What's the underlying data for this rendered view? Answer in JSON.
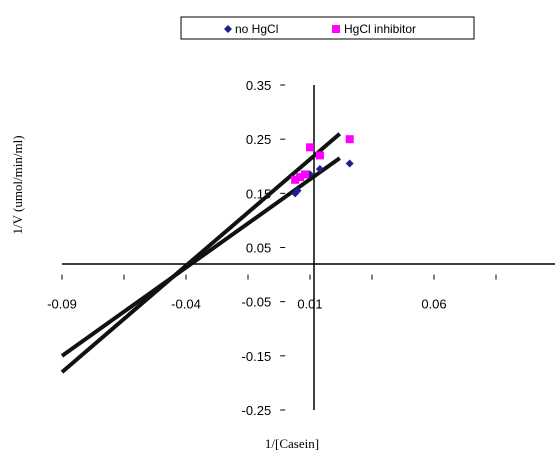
{
  "chart_data": {
    "type": "scatter",
    "title": "",
    "xlabel": "1/[Casein]",
    "ylabel": "1/V (umol/min/ml)",
    "xlim": [
      -0.09,
      0.11
    ],
    "ylim": [
      -0.25,
      0.35
    ],
    "x_ticks": [
      "-0.09",
      "-0.04",
      "0.01",
      "0.06"
    ],
    "x_tick_values": [
      -0.09,
      -0.04,
      0.01,
      0.06
    ],
    "y_ticks": [
      "0.35",
      "0.25",
      "0.15",
      "0.05",
      "-0.05",
      "-0.15",
      "-0.25"
    ],
    "y_tick_values": [
      0.35,
      0.25,
      0.15,
      0.05,
      -0.05,
      -0.15,
      -0.25
    ],
    "legend_position": "top",
    "grid": false,
    "series": [
      {
        "name": "no HgCl",
        "marker": "diamond",
        "color": "#1f1f8f",
        "points": [
          {
            "x": 0.004,
            "y": 0.15
          },
          {
            "x": 0.005,
            "y": 0.155
          },
          {
            "x": 0.006,
            "y": 0.18
          },
          {
            "x": 0.01,
            "y": 0.185
          },
          {
            "x": 0.014,
            "y": 0.195
          },
          {
            "x": 0.026,
            "y": 0.205
          }
        ],
        "trendline": {
          "x": [
            -0.09,
            0.022
          ],
          "y": [
            -0.15,
            0.215
          ],
          "color": "#111111"
        }
      },
      {
        "name": "HgCl inhibitor",
        "marker": "square",
        "color": "#ff00ff",
        "points": [
          {
            "x": 0.004,
            "y": 0.175
          },
          {
            "x": 0.006,
            "y": 0.18
          },
          {
            "x": 0.008,
            "y": 0.185
          },
          {
            "x": 0.01,
            "y": 0.235
          },
          {
            "x": 0.014,
            "y": 0.22
          },
          {
            "x": 0.026,
            "y": 0.25
          }
        ],
        "trendline": {
          "x": [
            -0.09,
            0.022
          ],
          "y": [
            -0.18,
            0.26
          ],
          "color": "#111111"
        }
      }
    ]
  }
}
